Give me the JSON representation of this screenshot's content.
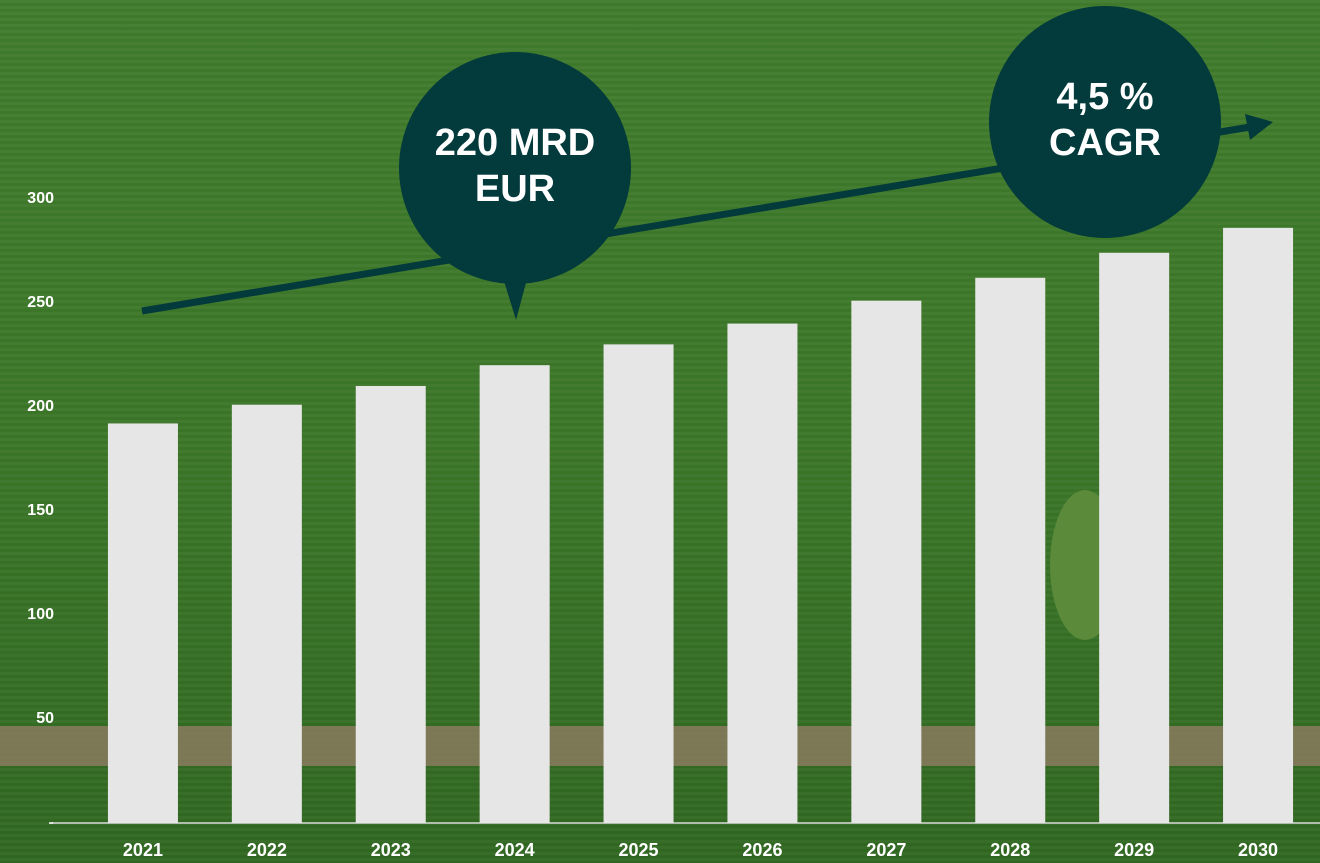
{
  "chart_data": {
    "type": "bar",
    "categories": [
      "2021",
      "2022",
      "2023",
      "2024",
      "2025",
      "2026",
      "2027",
      "2028",
      "2029",
      "2030"
    ],
    "values": [
      192,
      201,
      210,
      220,
      230,
      240,
      251,
      262,
      274,
      286
    ],
    "color": "#e6e6e6",
    "ylim": [
      0,
      395
    ],
    "yticks": [
      {
        "value": 0,
        "label": "-"
      },
      50,
      100,
      150,
      200,
      250,
      300
    ],
    "grid": false,
    "annotations": [
      {
        "lines": [
          "220 MRD",
          "EUR"
        ]
      },
      {
        "lines": [
          "4,5 %",
          "CAGR"
        ]
      }
    ]
  }
}
